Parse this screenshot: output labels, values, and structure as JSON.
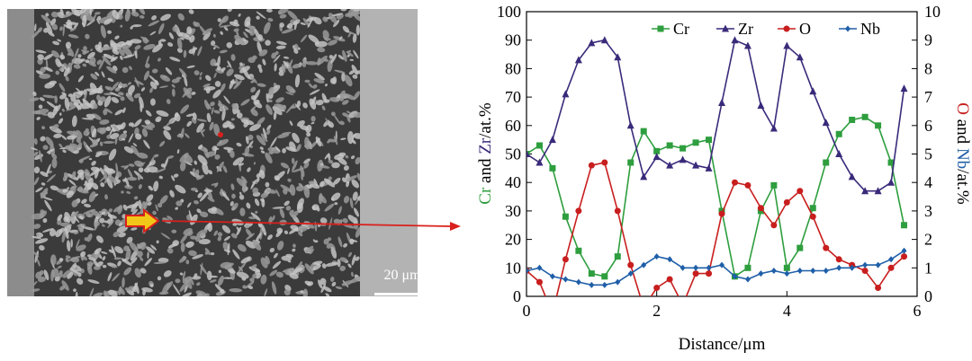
{
  "micrograph": {
    "scale_bar_label": "20 μm"
  },
  "colors": {
    "Cr": "#2e9e3e",
    "Zr": "#3a2a7a",
    "O": "#c81e1e",
    "Nb": "#1f5fa8",
    "arrow": "#d9201c",
    "marker_fill": "#f2c618"
  },
  "chart_data": {
    "type": "line",
    "xlabel": "Distance/μm",
    "ylabel_left_parts": [
      {
        "text": "Cr",
        "series": "Cr"
      },
      {
        "text": " and ",
        "series": ""
      },
      {
        "text": "Zr",
        "series": "Zr"
      },
      {
        "text": "/at.%",
        "series": ""
      }
    ],
    "ylabel_right_parts": [
      {
        "text": "O",
        "series": "O"
      },
      {
        "text": " and ",
        "series": ""
      },
      {
        "text": "Nb",
        "series": "Nb"
      },
      {
        "text": "/at.%",
        "series": ""
      }
    ],
    "xlim": [
      0,
      6
    ],
    "ylim_left": [
      0,
      100
    ],
    "ylim_right": [
      0,
      10
    ],
    "x_ticks": [
      "0",
      "2",
      "4",
      "6"
    ],
    "y_ticks_left": [
      "0",
      "10",
      "20",
      "30",
      "40",
      "50",
      "60",
      "70",
      "80",
      "90",
      "100"
    ],
    "y_ticks_right": [
      "0",
      "1",
      "2",
      "3",
      "4",
      "5",
      "6",
      "7",
      "8",
      "9",
      "10"
    ],
    "legend_position": "top-right",
    "series": [
      {
        "name": "Cr",
        "axis": "left",
        "marker": "square",
        "x": [
          0,
          0.2,
          0.4,
          0.6,
          0.8,
          1.0,
          1.2,
          1.4,
          1.6,
          1.8,
          2.0,
          2.2,
          2.4,
          2.6,
          2.8,
          3.0,
          3.2,
          3.4,
          3.6,
          3.8,
          4.0,
          4.2,
          4.4,
          4.6,
          4.8,
          5.0,
          5.2,
          5.4,
          5.6,
          5.8
        ],
        "y": [
          50,
          53,
          45,
          28,
          16,
          8,
          7,
          14,
          47,
          58,
          51,
          53,
          52,
          54,
          55,
          30,
          7,
          10,
          30,
          39,
          10,
          17,
          31,
          47,
          57,
          62,
          63,
          60,
          47,
          25
        ]
      },
      {
        "name": "Zr",
        "axis": "left",
        "marker": "triangle",
        "x": [
          0,
          0.2,
          0.4,
          0.6,
          0.8,
          1.0,
          1.2,
          1.4,
          1.6,
          1.8,
          2.0,
          2.2,
          2.4,
          2.6,
          2.8,
          3.0,
          3.2,
          3.4,
          3.6,
          3.8,
          4.0,
          4.2,
          4.4,
          4.6,
          4.8,
          5.0,
          5.2,
          5.4,
          5.6,
          5.8
        ],
        "y": [
          50,
          47,
          55,
          71,
          83,
          89,
          90,
          84,
          60,
          42,
          49,
          46,
          48,
          46,
          45,
          68,
          90,
          88,
          67,
          59,
          88,
          84,
          72,
          61,
          50,
          42,
          37,
          37,
          40,
          73
        ]
      },
      {
        "name": "O",
        "axis": "right",
        "marker": "circle",
        "x": [
          0,
          0.2,
          0.4,
          0.6,
          0.8,
          1.0,
          1.2,
          1.4,
          1.6,
          1.8,
          2.0,
          2.2,
          2.4,
          2.6,
          2.8,
          3.0,
          3.2,
          3.4,
          3.6,
          3.8,
          4.0,
          4.2,
          4.4,
          4.6,
          4.8,
          5.0,
          5.2,
          5.4,
          5.6,
          5.8
        ],
        "y": [
          0.9,
          0.5,
          -0.6,
          1.3,
          3.0,
          4.6,
          4.7,
          3.0,
          1.1,
          -0.4,
          0.3,
          0.6,
          -0.3,
          0.8,
          0.8,
          2.9,
          4.0,
          3.9,
          3.1,
          2.5,
          3.3,
          3.7,
          2.8,
          1.7,
          1.3,
          1.1,
          0.9,
          0.3,
          1.0,
          1.4
        ]
      },
      {
        "name": "Nb",
        "axis": "right",
        "marker": "diamond",
        "x": [
          0,
          0.2,
          0.4,
          0.6,
          0.8,
          1.0,
          1.2,
          1.4,
          1.6,
          1.8,
          2.0,
          2.2,
          2.4,
          2.6,
          2.8,
          3.0,
          3.2,
          3.4,
          3.6,
          3.8,
          4.0,
          4.2,
          4.4,
          4.6,
          4.8,
          5.0,
          5.2,
          5.4,
          5.6,
          5.8
        ],
        "y": [
          0.9,
          1.0,
          0.7,
          0.6,
          0.5,
          0.4,
          0.4,
          0.5,
          0.8,
          1.1,
          1.4,
          1.3,
          1.0,
          1.0,
          1.0,
          1.1,
          0.7,
          0.6,
          0.8,
          0.9,
          0.8,
          0.9,
          0.9,
          0.9,
          1.0,
          1.0,
          1.1,
          1.1,
          1.3,
          1.6
        ]
      }
    ]
  }
}
